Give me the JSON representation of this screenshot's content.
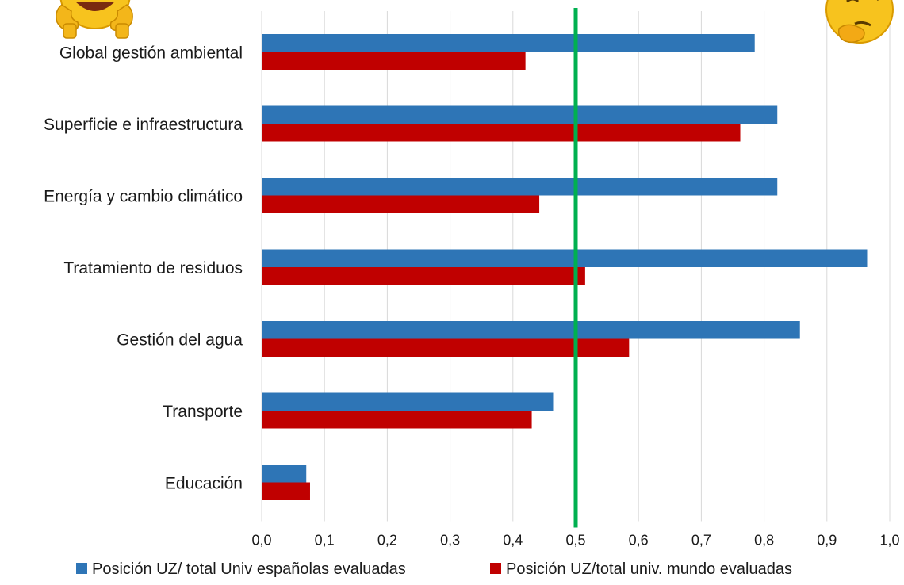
{
  "chart_data": {
    "type": "bar",
    "orientation": "horizontal",
    "title": "",
    "xlabel": "",
    "ylabel": "",
    "categories": [
      "Global gestión ambiental",
      "Superficie e infraestructura",
      "Energía y cambio climático",
      "Tratamiento de residuos",
      "Gestión del agua",
      "Transporte",
      "Educación"
    ],
    "series": [
      {
        "name": "Posición UZ/ total Univ españolas evaluadas",
        "color": "#2e75b6",
        "values": [
          0.785,
          0.821,
          0.821,
          0.964,
          0.857,
          0.464,
          0.071
        ]
      },
      {
        "name": "Posición UZ/total univ. mundo evaluadas",
        "color": "#c00000",
        "values": [
          0.42,
          0.762,
          0.442,
          0.515,
          0.585,
          0.43,
          0.077
        ]
      }
    ],
    "xlim": [
      0,
      1.0
    ],
    "xticks": [
      "0,0",
      "0,1",
      "0,2",
      "0,3",
      "0,4",
      "0,5",
      "0,6",
      "0,7",
      "0,8",
      "0,9",
      "1,0"
    ],
    "grid": true,
    "legend": "bottom",
    "reference_line": {
      "value": 0.5,
      "color": "#00b050"
    },
    "decorations": [
      "laughing-thumbs-up-emoji",
      "thinking-face-emoji"
    ]
  }
}
